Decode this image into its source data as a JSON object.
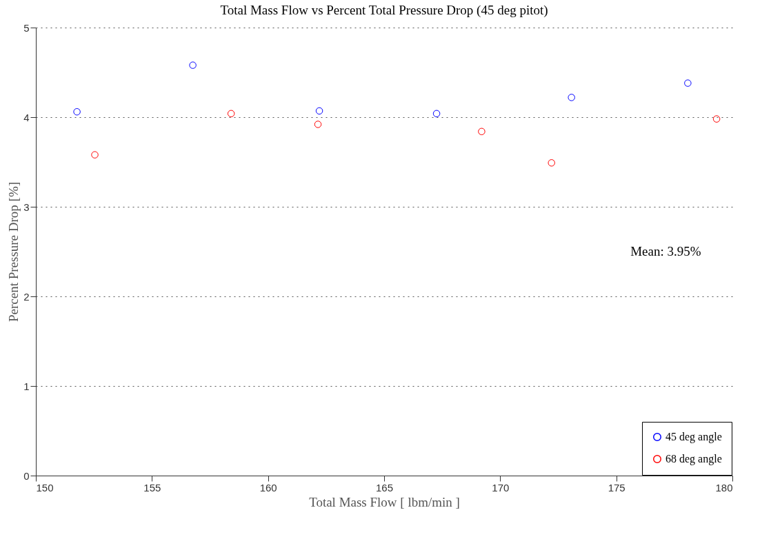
{
  "chart_data": {
    "type": "scatter",
    "title": "Total Mass Flow vs Percent Total Pressure Drop (45 deg pitot)",
    "xlabel": "Total Mass Flow [ lbm/min ]",
    "ylabel": "Percent Pressure Drop [%]",
    "annotations": [
      "Mean: 3.95%"
    ],
    "xlim": [
      150,
      180
    ],
    "xticks": [
      150,
      155,
      160,
      165,
      170,
      175,
      180
    ],
    "ylim": [
      0,
      5
    ],
    "yticks": [
      0,
      1,
      2,
      3,
      4,
      5
    ],
    "grid": "y",
    "legend": "bottom right",
    "marker": "circle",
    "series": [
      {
        "name": "45 deg angle",
        "color": "#0000ff",
        "x": [
          151.77,
          156.76,
          162.21,
          167.26,
          173.07,
          178.08
        ],
        "values": [
          4.06,
          4.58,
          4.07,
          4.04,
          4.22,
          4.38
        ]
      },
      {
        "name": "68 deg angle",
        "color": "#ff0000",
        "x": [
          152.54,
          158.41,
          162.15,
          169.2,
          172.21,
          179.32
        ],
        "values": [
          3.58,
          4.04,
          3.92,
          3.84,
          3.49,
          3.98
        ]
      }
    ]
  }
}
